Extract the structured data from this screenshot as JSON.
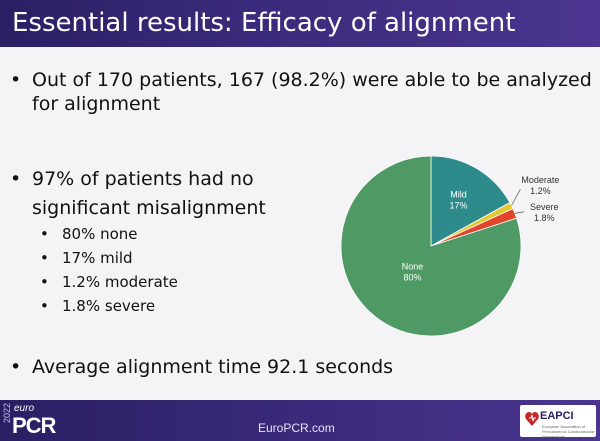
{
  "header": {
    "title": "Essential results: Efficacy of alignment"
  },
  "bullets": {
    "b1_line1": "Out of 170 patients, 167 (98.2%) were able to be analyzed",
    "b1_line2": "for alignment",
    "b2_line1": "97% of patients had no",
    "b2_line2": "significant misalignment",
    "sub": [
      "80% none",
      "17% mild",
      "1.2% moderate",
      "1.8% severe"
    ],
    "b3": "Average alignment time 92.1 seconds"
  },
  "chart_data": {
    "type": "pie",
    "categories": [
      "Mild",
      "Moderate",
      "Severe",
      "None"
    ],
    "values": [
      17,
      1.2,
      1.8,
      80
    ],
    "value_labels": [
      "17%",
      "1.2%",
      "1.8%",
      "80%"
    ],
    "colors": [
      "#2e8b8b",
      "#e8c62f",
      "#e0452b",
      "#4f9a64"
    ],
    "start": "12 o'clock, clockwise"
  },
  "footer": {
    "year": "2022",
    "euro": "euro",
    "pcr": "PCR",
    "url": "EuroPCR.com",
    "eapci": "EAPCI",
    "eapci_sub": "European Association of Percutaneous Cardiovascular Interventions"
  }
}
